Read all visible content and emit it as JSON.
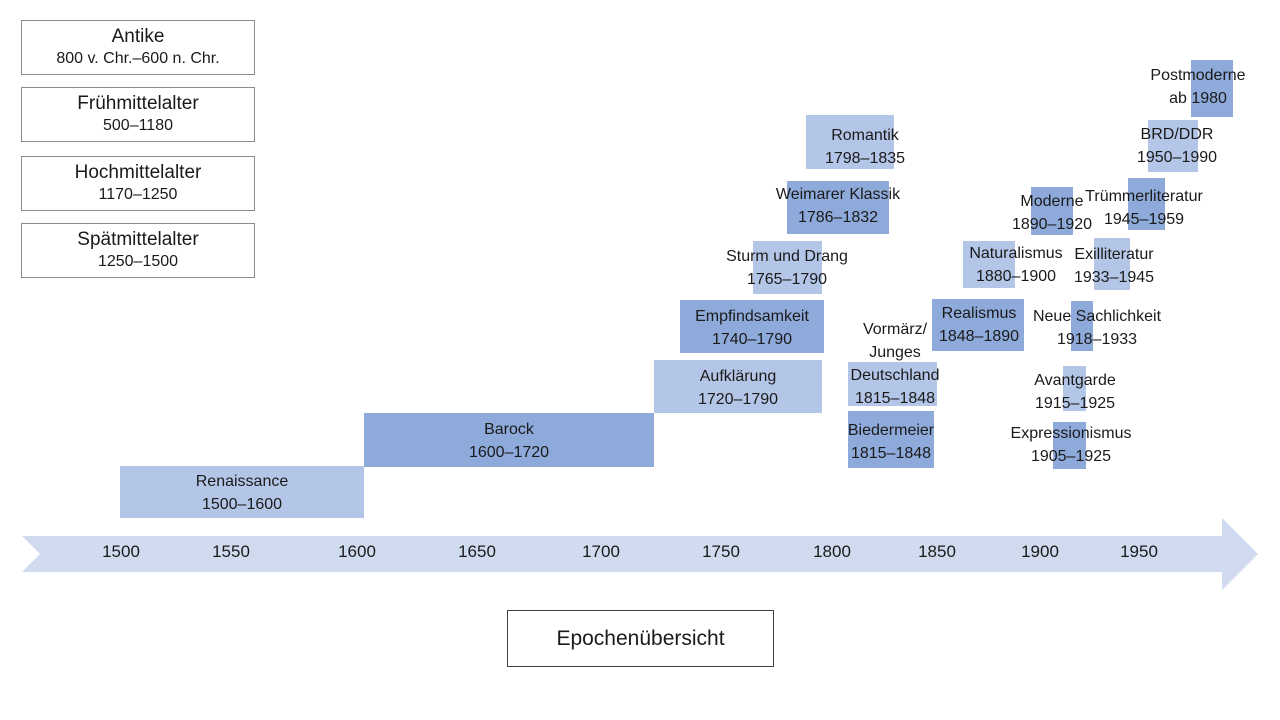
{
  "early_epochs": [
    {
      "name": "Antike",
      "range": "800 v. Chr.–600 n. Chr."
    },
    {
      "name": "Frühmittelalter",
      "range": "500–1180"
    },
    {
      "name": "Hochmittelalter",
      "range": "1170–1250"
    },
    {
      "name": "Spätmittelalter",
      "range": "1250–1500"
    }
  ],
  "timeline": {
    "ticks": [
      "1500",
      "1550",
      "1600",
      "1650",
      "1700",
      "1750",
      "1800",
      "1850",
      "1900",
      "1950"
    ],
    "colors": {
      "light": "#b4c6e7",
      "dark": "#8eaadb",
      "axis": "#d0dbef"
    }
  },
  "epochs": [
    {
      "id": "renaissance",
      "lines": [
        "Renaissance",
        "1500–1600"
      ],
      "shade": "light"
    },
    {
      "id": "barock",
      "lines": [
        "Barock",
        "1600–1720"
      ],
      "shade": "dark"
    },
    {
      "id": "aufklaerung",
      "lines": [
        "Aufklärung",
        "1720–1790"
      ],
      "shade": "light"
    },
    {
      "id": "empfindsamkeit",
      "lines": [
        "Empfindsamkeit",
        "1740–1790"
      ],
      "shade": "dark"
    },
    {
      "id": "sturm-und-drang",
      "lines": [
        "Sturm und Drang",
        "1765–1790"
      ],
      "shade": "light"
    },
    {
      "id": "weimarer-klassik",
      "lines": [
        "Weimarer Klassik",
        "1786–1832"
      ],
      "shade": "dark"
    },
    {
      "id": "romantik",
      "lines": [
        "Romantik",
        "1798–1835"
      ],
      "shade": "light"
    },
    {
      "id": "vormaerz",
      "lines": [
        "Vormärz/",
        "Junges",
        "Deutschland",
        "1815–1848"
      ],
      "shade": "light"
    },
    {
      "id": "biedermeier",
      "lines": [
        "Biedermeier",
        "1815–1848"
      ],
      "shade": "dark"
    },
    {
      "id": "realismus",
      "lines": [
        "Realismus",
        "1848–1890"
      ],
      "shade": "dark"
    },
    {
      "id": "naturalismus",
      "lines": [
        "Naturalismus",
        "1880–1900"
      ],
      "shade": "light"
    },
    {
      "id": "moderne",
      "lines": [
        "Moderne",
        "1890–1920"
      ],
      "shade": "dark"
    },
    {
      "id": "expressionismus",
      "lines": [
        "Expressionismus",
        "1905–1925"
      ],
      "shade": "dark"
    },
    {
      "id": "avantgarde",
      "lines": [
        "Avantgarde",
        "1915–1925"
      ],
      "shade": "light"
    },
    {
      "id": "neue-sachlichkeit",
      "lines": [
        "Neue Sachlichkeit",
        "1918–1933"
      ],
      "shade": "dark"
    },
    {
      "id": "exilliteratur",
      "lines": [
        "Exilliteratur",
        "1933–1945"
      ],
      "shade": "light"
    },
    {
      "id": "truemmerliteratur",
      "lines": [
        "Trümmerliteratur",
        "1945–1959"
      ],
      "shade": "dark"
    },
    {
      "id": "brd-ddr",
      "lines": [
        "BRD/DDR",
        "1950–1990"
      ],
      "shade": "light"
    },
    {
      "id": "postmoderne",
      "lines": [
        "Postmoderne",
        "ab 1980"
      ],
      "shade": "dark"
    }
  ],
  "title": "Epochenübersicht"
}
